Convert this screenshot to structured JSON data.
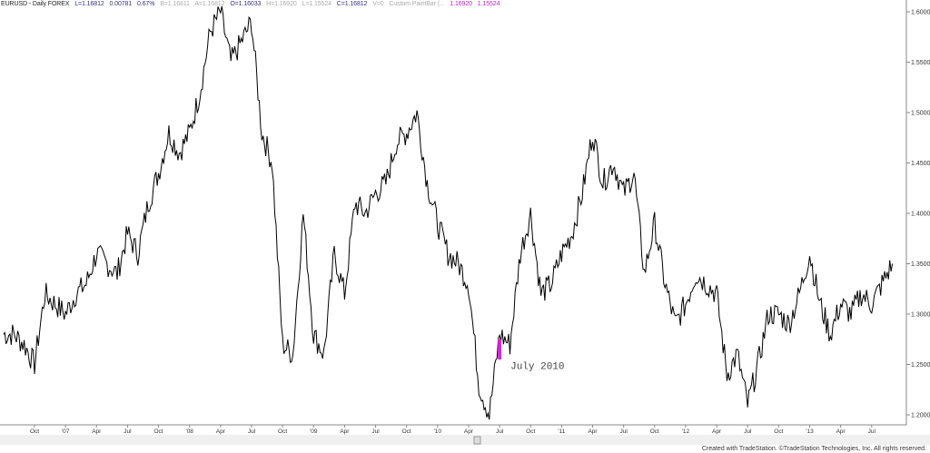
{
  "header": {
    "symbol": "EURUSD - Daily  FOREX",
    "last": "L=1.16812",
    "change": "0.00781",
    "pct": "0.67%",
    "bid": "B=1.16811",
    "ask": "A=1.16812",
    "open": "O=1.16033",
    "high": "H=1.16920",
    "low": "L=1.15524",
    "close": "C=1.16812",
    "volume": "V=0",
    "indicator": "Custom PaintBar (...",
    "ind_v1": "1.16920",
    "ind_v2": "1.15524"
  },
  "footer": "Created with TradeStation. ©TradeStation Technologies, Inc. All rights reserved.",
  "colors": {
    "line": "#000000",
    "paintbar": "#e020e0",
    "axis": "#888888"
  },
  "chart_data": {
    "type": "line",
    "title": "",
    "xlabel": "",
    "ylabel": "",
    "ylim": [
      1.19,
      1.61
    ],
    "grid": false,
    "yticks": [
      "1.60000",
      "1.55000",
      "1.50000",
      "1.45000",
      "1.40000",
      "1.35000",
      "1.30000",
      "1.25000",
      "1.20000"
    ],
    "xticks": [
      "Oct",
      "'07",
      "Apr",
      "Jul",
      "Oct",
      "'08",
      "Apr",
      "Jul",
      "Oct",
      "'09",
      "Apr",
      "Jul",
      "Oct",
      "'10",
      "Apr",
      "Jul",
      "Oct",
      "'11",
      "Apr",
      "Jul",
      "Oct",
      "'12",
      "Apr",
      "Jul",
      "Oct",
      "'13",
      "Apr",
      "Jul"
    ],
    "series": [
      {
        "x_start": "2006-07",
        "x_step": "month",
        "values": [
          1.28,
          1.28,
          1.27,
          1.25,
          1.32,
          1.31,
          1.3,
          1.32,
          1.33,
          1.36,
          1.35,
          1.34,
          1.38,
          1.36,
          1.41,
          1.44,
          1.48,
          1.46,
          1.48,
          1.52,
          1.58,
          1.6,
          1.55,
          1.57,
          1.59,
          1.48,
          1.45,
          1.27,
          1.26,
          1.4,
          1.28,
          1.26,
          1.36,
          1.32,
          1.41,
          1.4,
          1.42,
          1.43,
          1.47,
          1.48,
          1.5,
          1.43,
          1.39,
          1.36,
          1.35,
          1.33,
          1.23,
          1.2,
          1.28,
          1.27,
          1.36,
          1.4,
          1.32,
          1.33,
          1.36,
          1.38,
          1.42,
          1.48,
          1.43,
          1.45,
          1.42,
          1.44,
          1.34,
          1.39,
          1.33,
          1.29,
          1.31,
          1.34,
          1.33,
          1.32,
          1.24,
          1.26,
          1.21,
          1.25,
          1.3,
          1.3,
          1.29,
          1.32,
          1.36,
          1.31,
          1.28,
          1.31,
          1.3,
          1.32,
          1.31,
          1.33,
          1.35
        ]
      }
    ],
    "paintbar": {
      "date": "2010-07",
      "high": 1.275,
      "low": 1.255
    },
    "annotations": [
      {
        "text": "July 2010",
        "date": "2010-07",
        "value": 1.25
      }
    ]
  }
}
